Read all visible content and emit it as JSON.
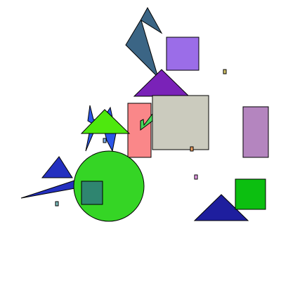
{
  "scene": {
    "background": "#ffffff",
    "shape_count": 17,
    "shapes": [
      {
        "name": "steel-blue-kite",
        "kind": "polygon",
        "color": "#3b6585"
      },
      {
        "name": "violet-square",
        "kind": "rect",
        "color": "#9b6de8"
      },
      {
        "name": "olive-tiny-square",
        "kind": "rect",
        "color": "#d4c46a"
      },
      {
        "name": "purple-triangle",
        "kind": "polygon",
        "color": "#7a22b8"
      },
      {
        "name": "salmon-rect",
        "kind": "rect",
        "color": "#fa8789"
      },
      {
        "name": "gray-square",
        "kind": "rect",
        "color": "#cbcbbe"
      },
      {
        "name": "orchid-rect",
        "kind": "rect",
        "color": "#b485bf"
      },
      {
        "name": "blue-zigzag",
        "kind": "polygon",
        "color": "#2c56e8"
      },
      {
        "name": "lime-triangle",
        "kind": "polygon",
        "color": "#4ee80e"
      },
      {
        "name": "green-bolt",
        "kind": "polygon",
        "color": "#45d85a"
      },
      {
        "name": "orange-tiny-square",
        "kind": "rect",
        "color": "#f0a060"
      },
      {
        "name": "pink-tiny-square",
        "kind": "rect",
        "color": "#f0a0f0"
      },
      {
        "name": "green-circle",
        "kind": "circle",
        "color": "#35d525"
      },
      {
        "name": "teal-square",
        "kind": "rect",
        "color": "#2f8570"
      },
      {
        "name": "navy-triangle",
        "kind": "polygon",
        "color": "#1e1e9e"
      },
      {
        "name": "green-square",
        "kind": "rect",
        "color": "#0cbf10"
      },
      {
        "name": "teal-tiny-square",
        "kind": "rect",
        "color": "#7ec0c0"
      }
    ]
  }
}
